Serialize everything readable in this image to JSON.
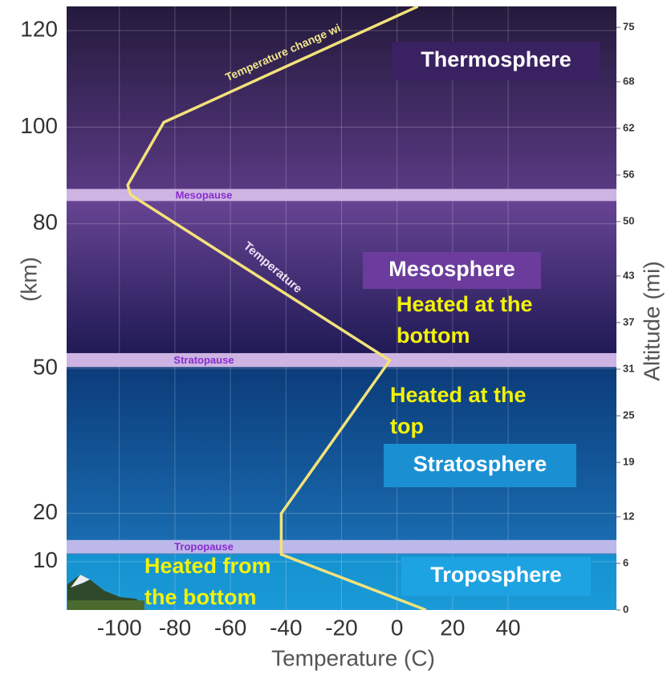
{
  "chart_data": {
    "type": "line",
    "x_label": "Temperature (C)",
    "y_label": "(km)",
    "y2_label": "Altitude (mi)",
    "xlim": [
      -119,
      79
    ],
    "ylim": [
      0,
      125
    ],
    "y2lim": [
      0,
      77.7
    ],
    "xticks": [
      -100,
      -80,
      -60,
      -40,
      -20,
      0,
      20,
      40
    ],
    "yticks": [
      10,
      20,
      50,
      80,
      100,
      120
    ],
    "y2ticks": [
      0,
      6,
      12,
      19,
      25,
      31,
      37,
      43,
      50,
      56,
      62,
      68,
      75
    ],
    "grid": true,
    "series": [
      {
        "name": "Temperature",
        "color": "#f3e27a",
        "x": [
          10.4,
          -41.7,
          -41.7,
          -2.6,
          -96,
          -97,
          -84,
          7.5
        ],
        "values": [
          0,
          11.5,
          20,
          51.7,
          86,
          88,
          101,
          125
        ]
      }
    ],
    "layers": [
      {
        "name": "Troposphere",
        "range": [
          0,
          11.5
        ],
        "colors": [
          "#1b9ad8",
          "#1592d0"
        ]
      },
      {
        "name": "Stratosphere",
        "range": [
          11.5,
          51.5
        ],
        "colors": [
          "#1a6fb4",
          "#0b3a78"
        ]
      },
      {
        "name": "Mesosphere",
        "range": [
          51.5,
          86
        ],
        "colors": [
          "#1c1852",
          "#6a4696"
        ]
      },
      {
        "name": "Thermosphere",
        "range": [
          86,
          125
        ],
        "colors": [
          "#5a3a84",
          "#241a3c"
        ]
      }
    ],
    "pauses": [
      {
        "name": "Tropopause",
        "range": [
          11.7,
          14.5
        ],
        "color": "#bdb8ea"
      },
      {
        "name": "Stratopause",
        "range": [
          50.3,
          53.2
        ],
        "color": "#cdb4e2"
      },
      {
        "name": "Mesopause",
        "range": [
          84.7,
          87.2
        ],
        "color": "#cdb4e2"
      }
    ],
    "annotations": {
      "temperature_change": "Temperature change wi",
      "heated_mesosphere": [
        "Heated at the",
        "bottom"
      ],
      "heated_stratosphere": [
        "Heated at the",
        "top"
      ],
      "heated_troposphere": [
        "Heated from",
        "the bottom"
      ]
    }
  }
}
